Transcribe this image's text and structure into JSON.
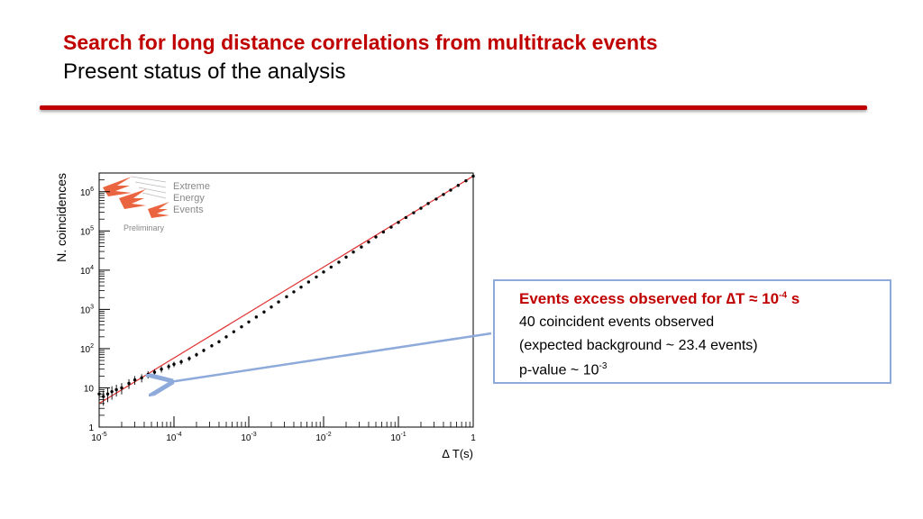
{
  "slide": {
    "title": "Search for long distance correlations from multitrack events",
    "subtitle": "Present status of the analysis"
  },
  "logo": {
    "line1": "Extreme",
    "line2": "Energy",
    "line3": "Events",
    "tag": "Preliminary"
  },
  "callout": {
    "headline_prefix": "Events excess observed for ",
    "headline_symbol": "∆T ≈ 10",
    "headline_exp": "-4",
    "headline_suffix": " s",
    "line2": "40 coincident events observed",
    "line3": "(expected background ~ 23.4 events)",
    "line4_prefix": "p-value ~ 10",
    "line4_exp": "-3"
  },
  "colors": {
    "title": "#c00000",
    "rule": "#c00000",
    "fit_line": "#e03030",
    "points": "#000000",
    "callout_border": "#8eaadb",
    "arrow": "#8eaadb",
    "logo": "#e8532a"
  },
  "chart_data": {
    "type": "scatter",
    "xlabel": "∆ T(s)",
    "ylabel": "N. coincidences",
    "xscale": "log",
    "yscale": "log",
    "xlim": [
      1e-05,
      1
    ],
    "ylim": [
      1,
      3000000
    ],
    "x_tick_labels": [
      "10^-5",
      "10^-4",
      "10^-3",
      "10^-2",
      "10^-1",
      "1"
    ],
    "y_tick_labels": [
      "1",
      "10",
      "10^2",
      "10^3",
      "10^4",
      "10^5",
      "10^6"
    ],
    "grid": false,
    "series": [
      {
        "role": "data",
        "x": [
          1e-05,
          1.14e-05,
          1.3e-05,
          1.48e-05,
          1.7e-05,
          2e-05,
          2.5e-05,
          3e-05,
          3.7e-05,
          4.5e-05,
          5.5e-05,
          6.8e-05,
          8.5e-05,
          0.0001,
          0.000125,
          0.00016,
          0.0002,
          0.00025,
          0.00032,
          0.0004,
          0.0005,
          0.00063,
          0.0008,
          0.001,
          0.00126,
          0.0016,
          0.002,
          0.0025,
          0.0032,
          0.004,
          0.005,
          0.0063,
          0.008,
          0.01,
          0.0126,
          0.016,
          0.02,
          0.025,
          0.032,
          0.04,
          0.05,
          0.063,
          0.08,
          0.1,
          0.126,
          0.16,
          0.2,
          0.25,
          0.32,
          0.4,
          0.5,
          0.63,
          0.8,
          1
        ],
        "y": [
          7,
          6,
          7,
          8,
          9,
          10,
          13,
          16,
          18,
          22,
          25,
          30,
          35,
          40,
          46,
          56,
          70,
          90,
          118,
          150,
          200,
          270,
          360,
          480,
          640,
          860,
          1150,
          1550,
          2100,
          2800,
          3700,
          5000,
          6700,
          9000,
          12000,
          16000,
          21500,
          29000,
          39000,
          52000,
          70000,
          94000,
          125000,
          165000,
          220000,
          290000,
          380000,
          500000,
          650000,
          850000,
          1100000,
          1450000,
          1900000,
          2500000
        ],
        "err": [
          3,
          2.5,
          2.7,
          3,
          3,
          3.2,
          3.6,
          4,
          4.2,
          4.7,
          5,
          5.5,
          6,
          6.3,
          6.8,
          7.5,
          8.4,
          9.5,
          10.9,
          12.2,
          14,
          16,
          19,
          22,
          25,
          29,
          34,
          39,
          46,
          53,
          61,
          71,
          82,
          95,
          110,
          126,
          147,
          170,
          197,
          228,
          265,
          307,
          354,
          406,
          469,
          539,
          616,
          707,
          806,
          922,
          1049,
          1204,
          1378,
          1581
        ]
      },
      {
        "role": "fit",
        "x": [
          1e-05,
          1
        ],
        "y": [
          4,
          2500000
        ]
      }
    ]
  }
}
